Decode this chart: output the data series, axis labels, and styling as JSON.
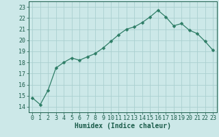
{
  "x": [
    0,
    1,
    2,
    3,
    4,
    5,
    6,
    7,
    8,
    9,
    10,
    11,
    12,
    13,
    14,
    15,
    16,
    17,
    18,
    19,
    20,
    21,
    22,
    23
  ],
  "y": [
    14.8,
    14.2,
    15.5,
    17.5,
    18.0,
    18.4,
    18.2,
    18.5,
    18.8,
    19.3,
    19.9,
    20.5,
    21.0,
    21.2,
    21.6,
    22.1,
    22.7,
    22.1,
    21.3,
    21.5,
    20.9,
    20.6,
    19.9,
    19.1
  ],
  "line_color": "#2e7d66",
  "marker": "D",
  "marker_size": 2.5,
  "bg_color": "#cce8e8",
  "grid_color": "#aacfcf",
  "xlabel": "Humidex (Indice chaleur)",
  "ylim": [
    13.5,
    23.5
  ],
  "xlim": [
    -0.5,
    23.5
  ],
  "yticks": [
    14,
    15,
    16,
    17,
    18,
    19,
    20,
    21,
    22,
    23
  ],
  "xticks": [
    0,
    1,
    2,
    3,
    4,
    5,
    6,
    7,
    8,
    9,
    10,
    11,
    12,
    13,
    14,
    15,
    16,
    17,
    18,
    19,
    20,
    21,
    22,
    23
  ],
  "tick_color": "#1a5c4a",
  "label_fontsize": 7.0,
  "tick_fontsize": 6.0
}
